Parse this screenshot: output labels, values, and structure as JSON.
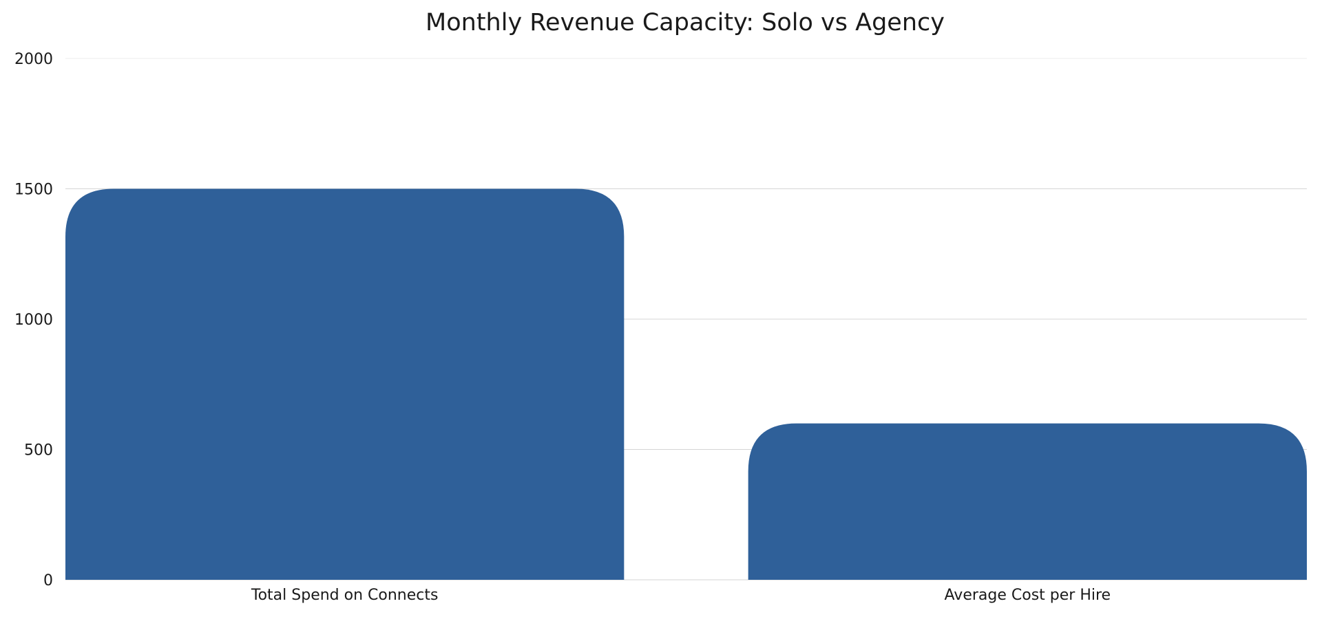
{
  "chart_data": {
    "type": "bar",
    "title": "Monthly Revenue Capacity: Solo vs Agency",
    "categories": [
      "Total Spend on Connects",
      "Average Cost per Hire"
    ],
    "values": [
      1500,
      600
    ],
    "ylim": [
      0,
      2000
    ],
    "yticks": [
      "0",
      "500",
      "1000",
      "1500",
      "2000"
    ],
    "grid": true,
    "bar_color": "#2f6099"
  }
}
